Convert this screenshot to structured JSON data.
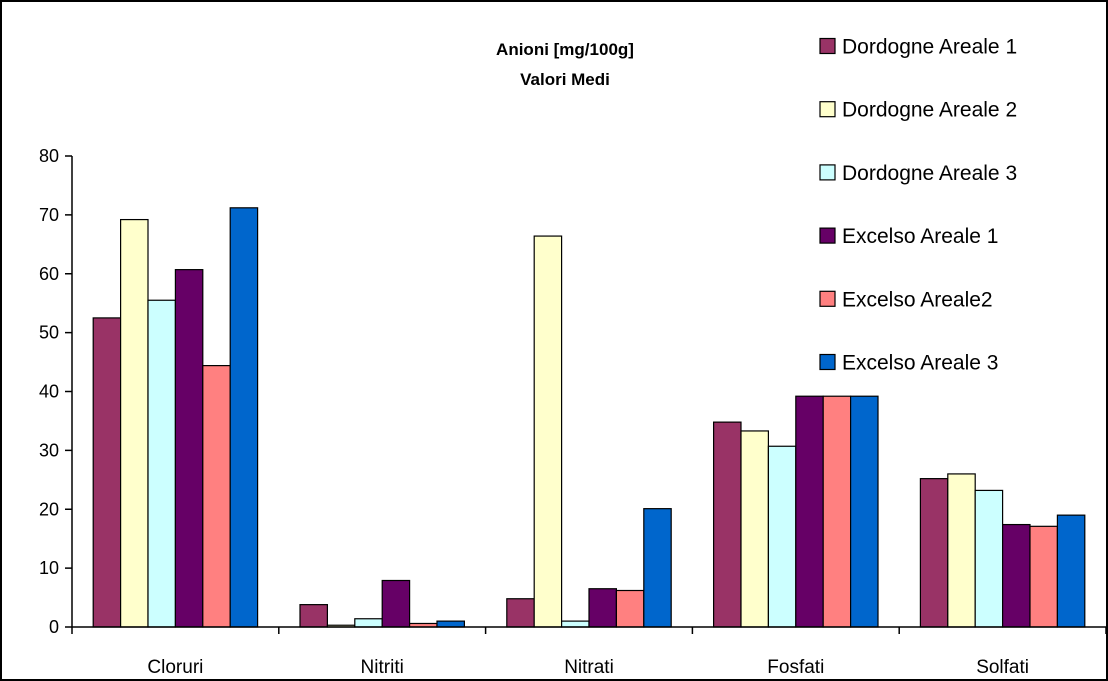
{
  "chart_data": {
    "type": "bar",
    "title": "Anioni [mg/100g]",
    "subtitle": "Valori Medi",
    "xlabel": "",
    "ylabel": "",
    "ylim": [
      0,
      80
    ],
    "yticks": [
      0,
      10,
      20,
      30,
      40,
      50,
      60,
      70,
      80
    ],
    "grid": false,
    "legend_position": "right",
    "categories": [
      "Cloruri",
      "Nitriti",
      "Nitrati",
      "Fosfati",
      "Solfati"
    ],
    "series": [
      {
        "name": "Dordogne Areale 1",
        "color": "#993366",
        "values": [
          52.5,
          3.8,
          4.8,
          34.8,
          25.2
        ]
      },
      {
        "name": "Dordogne Areale 2",
        "color": "#FFFFCC",
        "values": [
          69.2,
          0.3,
          66.4,
          33.3,
          26.0
        ]
      },
      {
        "name": "Dordogne Areale 3",
        "color": "#CCFFFF",
        "values": [
          55.5,
          1.4,
          1.0,
          30.7,
          23.2
        ]
      },
      {
        "name": "Excelso Areale 1",
        "color": "#660066",
        "values": [
          60.7,
          7.9,
          6.5,
          39.2,
          17.4
        ]
      },
      {
        "name": "Excelso Areale2",
        "color": "#FF8080",
        "values": [
          44.4,
          0.6,
          6.2,
          39.2,
          17.1
        ]
      },
      {
        "name": "Excelso Areale 3",
        "color": "#0066CC",
        "values": [
          71.2,
          1.0,
          20.1,
          39.2,
          19.0
        ]
      }
    ]
  }
}
